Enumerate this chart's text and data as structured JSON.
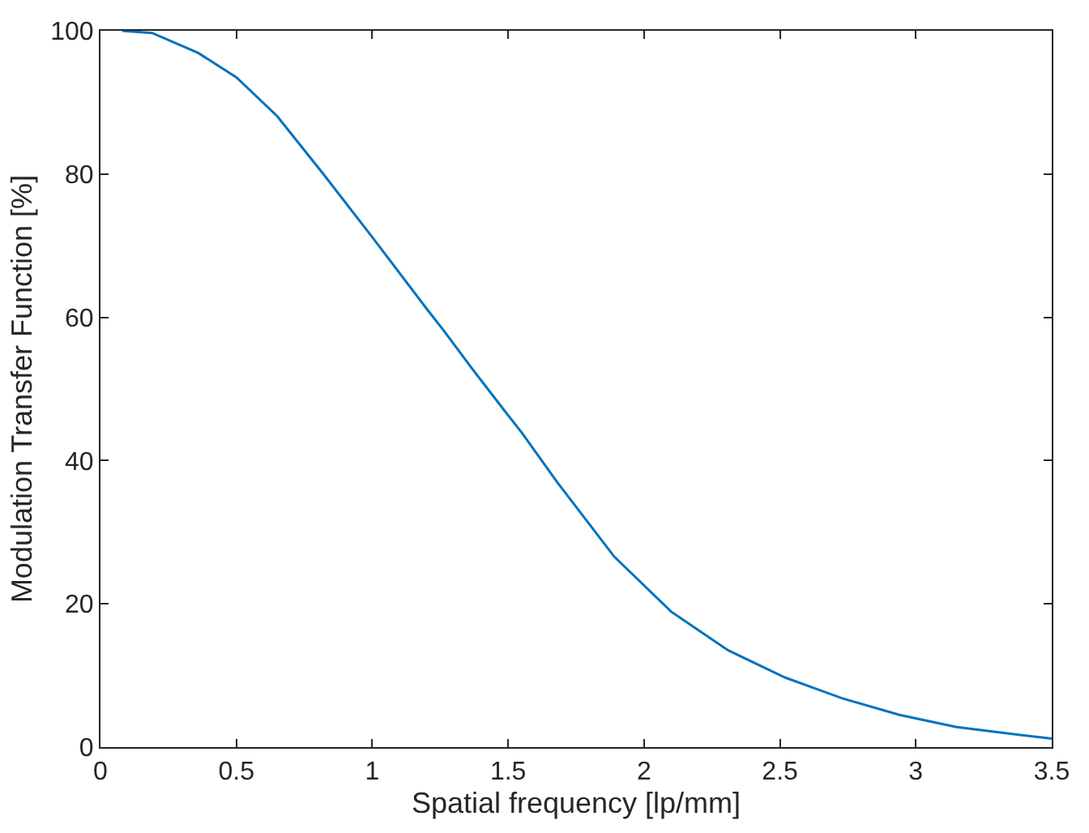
{
  "chart_data": {
    "type": "line",
    "xlabel": "Spatial frequency [lp/mm]",
    "ylabel": "Modulation Transfer Function [%]",
    "x": [
      0.08,
      0.19,
      0.36,
      0.5,
      0.65,
      0.82,
      1.0,
      1.2,
      1.26,
      1.37,
      1.49,
      1.55,
      1.68,
      1.89,
      2.1,
      2.31,
      2.52,
      2.73,
      2.94,
      3.15,
      3.36,
      3.5
    ],
    "series": [
      {
        "color": "#0072bd",
        "values": [
          100,
          99.7,
          96.9,
          93.5,
          88.1,
          80.0,
          71.2,
          61.2,
          58.3,
          52.7,
          46.8,
          43.9,
          37.0,
          26.6,
          18.9,
          13.5,
          9.7,
          6.8,
          4.5,
          2.8,
          1.8,
          1.2
        ]
      }
    ],
    "xlim": [
      0,
      3.5
    ],
    "xticks": [
      0,
      0.5,
      1,
      1.5,
      2,
      2.5,
      3,
      3.5
    ],
    "ylim": [
      0,
      100
    ],
    "yticks": [
      0,
      20,
      40,
      60,
      80,
      100
    ],
    "grid": false,
    "marker": "none",
    "line_style": "solid"
  }
}
